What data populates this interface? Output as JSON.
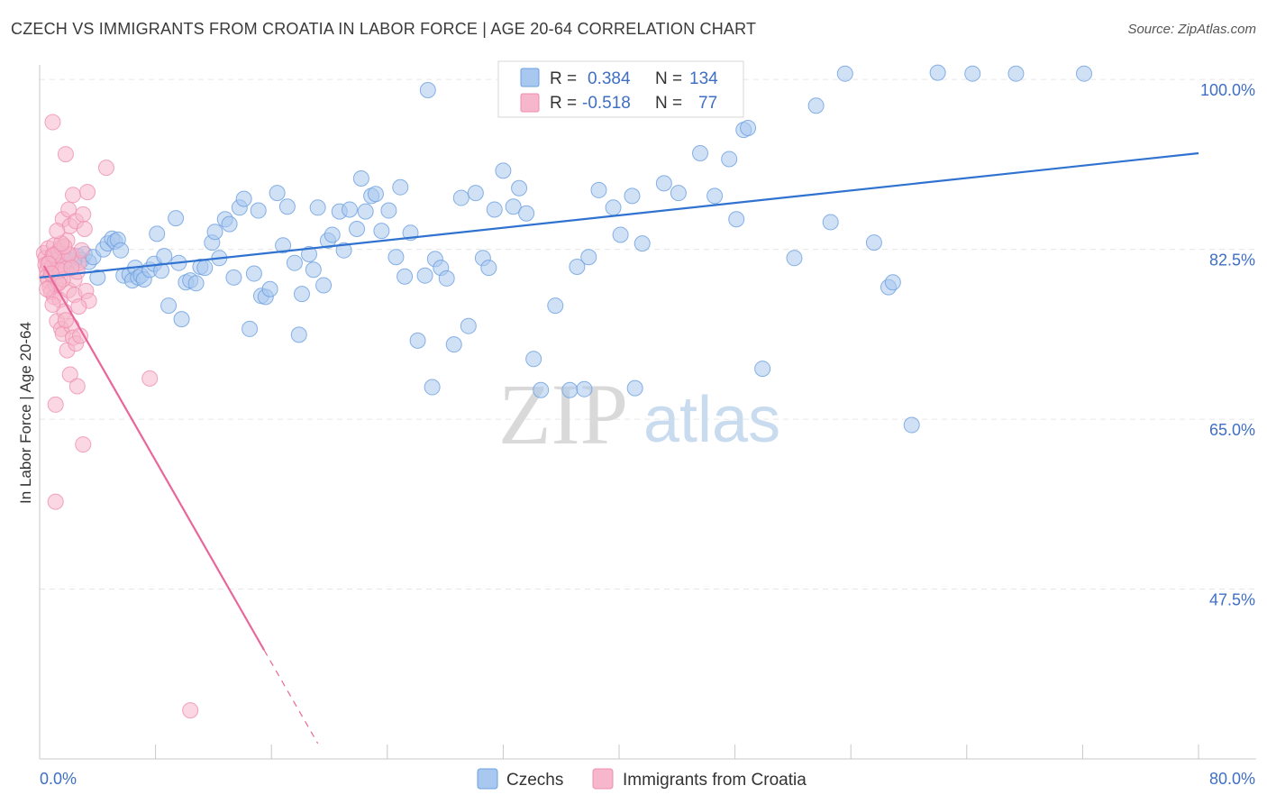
{
  "title": "CZECH VS IMMIGRANTS FROM CROATIA IN LABOR FORCE | AGE 20-64 CORRELATION CHART",
  "source": "Source: ZipAtlas.com",
  "watermark": {
    "zip": "ZIP",
    "atlas": "atlas"
  },
  "stats": [
    {
      "r_label": "R =",
      "r_value": "0.384",
      "n_label": "N =",
      "n_value": "134"
    },
    {
      "r_label": "R =",
      "r_value": "-0.518",
      "n_label": "N =",
      "n_value": "77"
    }
  ],
  "colors": {
    "blue_fill": "#a9c8ef",
    "blue_stroke": "#6b9fe0",
    "blue_line": "#2f72d0",
    "pink_fill": "#f6b6cb",
    "pink_stroke": "#ef8fb0",
    "pink_line": "#e8679a",
    "tick_text": "#3f6fc4"
  },
  "chart_data": {
    "type": "scatter",
    "title": "CZECH VS IMMIGRANTS FROM CROATIA IN LABOR FORCE | AGE 20-64 CORRELATION CHART",
    "xlabel": "",
    "ylabel": "In Labor Force | Age 20-64",
    "xlim": [
      0,
      80
    ],
    "ylim": [
      30,
      101.5
    ],
    "x_tick_labels": [
      "0.0%",
      "80.0%"
    ],
    "y_ticks": [
      47.5,
      65.0,
      82.5,
      100.0
    ],
    "y_tick_labels": [
      "47.5%",
      "65.0%",
      "82.5%",
      "100.0%"
    ],
    "grid": true,
    "legend_position": "bottom",
    "series": [
      {
        "name": "Czechs",
        "color": "#a9c8ef",
        "trend": {
          "x": [
            0,
            80
          ],
          "y": [
            79.6,
            92.4
          ],
          "style": "solid"
        },
        "points": [
          [
            1.0,
            81.7
          ],
          [
            1.4,
            82.0
          ],
          [
            1.8,
            81.6
          ],
          [
            2.0,
            81.3
          ],
          [
            2.2,
            80.8
          ],
          [
            2.4,
            81.4
          ],
          [
            2.6,
            81.8
          ],
          [
            2.9,
            81.4
          ],
          [
            3.1,
            82.0
          ],
          [
            3.4,
            81.2
          ],
          [
            3.7,
            81.7
          ],
          [
            4.0,
            79.6
          ],
          [
            4.4,
            82.5
          ],
          [
            4.7,
            83.1
          ],
          [
            5.0,
            83.6
          ],
          [
            5.2,
            83.3
          ],
          [
            5.4,
            83.5
          ],
          [
            5.6,
            82.4
          ],
          [
            5.8,
            79.8
          ],
          [
            6.2,
            79.9
          ],
          [
            6.4,
            79.3
          ],
          [
            6.6,
            80.6
          ],
          [
            6.8,
            79.6
          ],
          [
            7.0,
            79.8
          ],
          [
            7.2,
            79.4
          ],
          [
            7.6,
            80.4
          ],
          [
            7.9,
            81.0
          ],
          [
            8.1,
            84.1
          ],
          [
            8.4,
            80.3
          ],
          [
            8.6,
            81.8
          ],
          [
            8.9,
            76.7
          ],
          [
            9.4,
            85.7
          ],
          [
            9.6,
            81.1
          ],
          [
            9.8,
            75.3
          ],
          [
            10.1,
            79.1
          ],
          [
            10.4,
            79.3
          ],
          [
            10.8,
            79.0
          ],
          [
            11.1,
            80.7
          ],
          [
            11.4,
            80.6
          ],
          [
            11.9,
            83.2
          ],
          [
            12.1,
            84.3
          ],
          [
            12.4,
            81.6
          ],
          [
            12.8,
            85.6
          ],
          [
            13.1,
            85.1
          ],
          [
            13.4,
            79.6
          ],
          [
            13.8,
            86.8
          ],
          [
            14.1,
            87.7
          ],
          [
            14.5,
            74.3
          ],
          [
            14.8,
            80.0
          ],
          [
            15.1,
            86.5
          ],
          [
            15.3,
            77.7
          ],
          [
            15.6,
            77.6
          ],
          [
            15.9,
            78.4
          ],
          [
            16.4,
            88.3
          ],
          [
            16.8,
            82.9
          ],
          [
            17.1,
            86.9
          ],
          [
            17.6,
            81.1
          ],
          [
            17.9,
            73.7
          ],
          [
            18.1,
            77.9
          ],
          [
            18.6,
            82.0
          ],
          [
            18.9,
            80.4
          ],
          [
            19.2,
            86.8
          ],
          [
            19.6,
            78.8
          ],
          [
            19.9,
            83.4
          ],
          [
            20.2,
            84.0
          ],
          [
            20.7,
            86.4
          ],
          [
            21.0,
            82.4
          ],
          [
            21.4,
            86.6
          ],
          [
            21.9,
            84.6
          ],
          [
            22.2,
            89.8
          ],
          [
            22.5,
            86.4
          ],
          [
            22.9,
            88.0
          ],
          [
            23.2,
            88.2
          ],
          [
            23.6,
            84.4
          ],
          [
            24.1,
            86.5
          ],
          [
            24.6,
            81.7
          ],
          [
            24.9,
            88.9
          ],
          [
            25.2,
            79.7
          ],
          [
            25.6,
            84.2
          ],
          [
            26.1,
            73.1
          ],
          [
            26.6,
            79.8
          ],
          [
            27.1,
            68.3
          ],
          [
            27.3,
            81.5
          ],
          [
            27.7,
            80.6
          ],
          [
            28.1,
            79.5
          ],
          [
            28.6,
            72.7
          ],
          [
            29.1,
            87.8
          ],
          [
            29.6,
            74.6
          ],
          [
            30.1,
            88.3
          ],
          [
            30.6,
            81.6
          ],
          [
            31.0,
            80.6
          ],
          [
            31.4,
            86.6
          ],
          [
            32.0,
            90.6
          ],
          [
            32.7,
            86.9
          ],
          [
            33.1,
            88.8
          ],
          [
            33.6,
            86.2
          ],
          [
            34.1,
            71.2
          ],
          [
            34.6,
            68.0
          ],
          [
            35.6,
            76.7
          ],
          [
            36.6,
            68.0
          ],
          [
            37.1,
            80.7
          ],
          [
            37.6,
            68.1
          ],
          [
            37.9,
            81.7
          ],
          [
            38.6,
            88.6
          ],
          [
            39.6,
            86.8
          ],
          [
            40.1,
            84.0
          ],
          [
            40.9,
            88.0
          ],
          [
            41.1,
            68.2
          ],
          [
            41.6,
            83.1
          ],
          [
            43.1,
            89.3
          ],
          [
            44.1,
            88.3
          ],
          [
            45.1,
            96.9
          ],
          [
            45.6,
            92.4
          ],
          [
            46.6,
            88.0
          ],
          [
            47.6,
            91.8
          ],
          [
            48.1,
            85.6
          ],
          [
            48.6,
            94.8
          ],
          [
            48.9,
            95.0
          ],
          [
            49.9,
            70.2
          ],
          [
            52.1,
            81.6
          ],
          [
            53.6,
            97.3
          ],
          [
            54.6,
            85.3
          ],
          [
            55.6,
            100.6
          ],
          [
            57.6,
            83.2
          ],
          [
            58.6,
            78.6
          ],
          [
            58.9,
            79.1
          ],
          [
            62.0,
            100.7
          ],
          [
            67.4,
            100.6
          ],
          [
            72.1,
            100.6
          ],
          [
            26.8,
            98.9
          ],
          [
            64.4,
            100.6
          ],
          [
            60.2,
            64.4
          ]
        ]
      },
      {
        "name": "Immigrants from Croatia",
        "color": "#f6b6cb",
        "trend": {
          "x": [
            0.3,
            15.5
          ],
          "y": [
            80.8,
            41.2
          ],
          "style": "solid",
          "extension": {
            "x": [
              15.5,
              19.2
            ],
            "y": [
              41.2,
              31.6
            ],
            "style": "dashed"
          }
        },
        "points": [
          [
            0.3,
            82.1
          ],
          [
            0.4,
            81.6
          ],
          [
            0.4,
            80.9
          ],
          [
            0.5,
            80.3
          ],
          [
            0.5,
            79.7
          ],
          [
            0.6,
            82.6
          ],
          [
            0.6,
            79.3
          ],
          [
            0.7,
            78.6
          ],
          [
            0.7,
            81.2
          ],
          [
            0.8,
            80.6
          ],
          [
            0.8,
            78.1
          ],
          [
            0.9,
            81.9
          ],
          [
            0.9,
            79.9
          ],
          [
            1.0,
            77.6
          ],
          [
            1.0,
            82.9
          ],
          [
            1.1,
            80.1
          ],
          [
            1.1,
            78.9
          ],
          [
            1.2,
            81.4
          ],
          [
            1.2,
            75.1
          ],
          [
            1.3,
            82.3
          ],
          [
            1.3,
            79.1
          ],
          [
            1.4,
            80.8
          ],
          [
            1.4,
            77.3
          ],
          [
            1.5,
            74.3
          ],
          [
            1.5,
            82.7
          ],
          [
            1.6,
            85.6
          ],
          [
            1.6,
            73.8
          ],
          [
            1.7,
            81.3
          ],
          [
            1.7,
            76.1
          ],
          [
            1.8,
            92.3
          ],
          [
            1.8,
            80.5
          ],
          [
            1.9,
            72.1
          ],
          [
            1.9,
            83.4
          ],
          [
            2.0,
            86.6
          ],
          [
            2.0,
            78.3
          ],
          [
            2.1,
            69.6
          ],
          [
            2.1,
            84.9
          ],
          [
            2.2,
            81.9
          ],
          [
            2.2,
            74.6
          ],
          [
            2.3,
            73.4
          ],
          [
            2.3,
            88.1
          ],
          [
            2.4,
            79.4
          ],
          [
            2.4,
            77.8
          ],
          [
            2.5,
            72.8
          ],
          [
            2.5,
            85.4
          ],
          [
            2.6,
            68.4
          ],
          [
            2.6,
            80.2
          ],
          [
            2.7,
            81.1
          ],
          [
            2.8,
            73.6
          ],
          [
            2.9,
            82.4
          ],
          [
            3.0,
            86.1
          ],
          [
            3.1,
            84.6
          ],
          [
            3.2,
            78.2
          ],
          [
            3.3,
            88.4
          ],
          [
            3.4,
            77.2
          ],
          [
            0.9,
            95.6
          ],
          [
            1.1,
            66.5
          ],
          [
            1.1,
            56.5
          ],
          [
            4.6,
            90.9
          ],
          [
            7.6,
            69.2
          ],
          [
            3.0,
            62.4
          ],
          [
            10.4,
            35.0
          ],
          [
            1.6,
            79.4
          ],
          [
            1.8,
            75.2
          ],
          [
            2.0,
            82.0
          ],
          [
            1.4,
            80.3
          ],
          [
            1.0,
            81.9
          ],
          [
            0.6,
            81.0
          ],
          [
            0.8,
            80.0
          ],
          [
            1.3,
            79.0
          ],
          [
            0.5,
            78.4
          ],
          [
            1.7,
            82.8
          ],
          [
            2.2,
            80.6
          ],
          [
            1.5,
            83.1
          ],
          [
            2.7,
            76.6
          ],
          [
            0.9,
            76.8
          ],
          [
            1.2,
            84.4
          ]
        ]
      }
    ]
  }
}
